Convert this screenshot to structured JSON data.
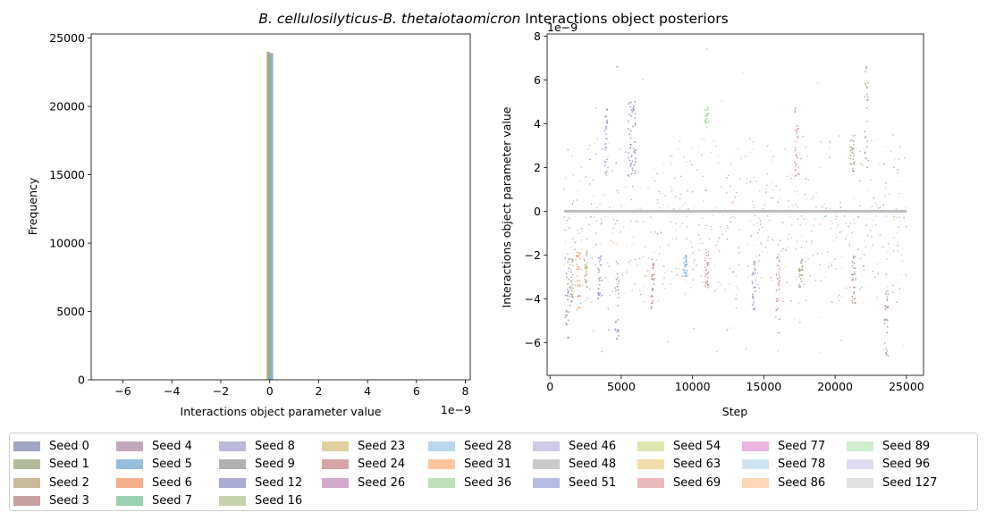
{
  "title": {
    "prefix": "B. cellulosilyticus-B. thetaiotaomicron",
    "suffix": " Interactions object posteriors"
  },
  "colors": {
    "seeds": [
      "#8a8fb5",
      "#9daa82",
      "#bca981",
      "#b78a8b",
      "#b391ad",
      "#7baed6",
      "#f19a6b",
      "#82c59b",
      "#a9a7d2",
      "#9e9e9e",
      "#9696c8",
      "#b8c79a",
      "#d9c184",
      "#cd8f8f",
      "#c994c2",
      "#a6cde8",
      "#fbb785",
      "#acd7a6",
      "#c1bde0",
      "#bdbdbd",
      "#a6abdc",
      "#d4e09e",
      "#eed495",
      "#e6a7ab",
      "#e2a4d6",
      "#c3ddec",
      "#fdcda4",
      "#c4e8c1",
      "#d7d6ea",
      "#d9d9d9"
    ]
  },
  "chart_data": [
    {
      "type": "histogram",
      "title": "",
      "xlabel": "Interactions object parameter value",
      "ylabel": "Frequency",
      "x_exponent": "1e−9",
      "xlim": [
        -7.3e-09,
        8.2e-09
      ],
      "ylim": [
        0,
        25300
      ],
      "x_ticks": [
        -6e-09,
        -4e-09,
        -2e-09,
        0,
        2e-09,
        4e-09,
        6e-09,
        8e-09
      ],
      "x_tick_labels": [
        "−6",
        "−4",
        "−2",
        "0",
        "2",
        "4",
        "6",
        "8"
      ],
      "y_ticks": [
        0,
        5000,
        10000,
        15000,
        20000,
        25000
      ],
      "y_tick_labels": [
        "0",
        "5000",
        "10000",
        "15000",
        "20000",
        "25000"
      ],
      "bars": [
        {
          "series": "Seed 2",
          "x0": -1.3e-10,
          "x1": 1.5e-11,
          "height": 24000
        },
        {
          "series": "Seed 1",
          "x0": -8e-11,
          "x1": 5e-11,
          "height": 23850
        },
        {
          "series": "Seed 5",
          "x0": 1.5e-11,
          "x1": 1.4e-10,
          "height": 23900
        }
      ]
    },
    {
      "type": "scatter",
      "title": "",
      "xlabel": "Step",
      "ylabel": "Interactions object parameter value",
      "y_exponent": "1e−9",
      "xlim": [
        -200,
        26200
      ],
      "ylim": [
        -7.5e-09,
        8.1e-09
      ],
      "x_ticks": [
        0,
        5000,
        10000,
        15000,
        20000,
        25000
      ],
      "x_tick_labels": [
        "0",
        "5000",
        "10000",
        "15000",
        "20000",
        "25000"
      ],
      "y_ticks": [
        -6e-09,
        -4e-09,
        -2e-09,
        0,
        2e-09,
        4e-09,
        6e-09,
        8e-09
      ],
      "y_tick_labels": [
        "−6",
        "−4",
        "−2",
        "0",
        "2",
        "4",
        "6",
        "8"
      ],
      "zero_line": {
        "x0": 1000,
        "x1": 25000,
        "y": 0
      },
      "step_range": [
        1000,
        25000
      ],
      "dense_columns": [
        {
          "step": 1200,
          "ymin": -6e-09,
          "ymax": -1.8e-09,
          "series": 0
        },
        {
          "step": 1500,
          "ymin": -4.5e-09,
          "ymax": -2e-09,
          "series": 1
        },
        {
          "step": 2000,
          "ymin": -4.5e-09,
          "ymax": -1.8e-09,
          "series": 6
        },
        {
          "step": 2500,
          "ymin": -3.5e-09,
          "ymax": -1.8e-09,
          "series": 2
        },
        {
          "step": 3500,
          "ymin": -4e-09,
          "ymax": -2e-09,
          "series": 10
        },
        {
          "step": 3900,
          "ymin": 1.5e-09,
          "ymax": 4.7e-09,
          "series": 10
        },
        {
          "step": 4700,
          "ymin": -5.9e-09,
          "ymax": -2e-09,
          "series": 10
        },
        {
          "step": 5600,
          "ymin": 1.5e-09,
          "ymax": 5.1e-09,
          "series": 0
        },
        {
          "step": 5900,
          "ymin": 1.7e-09,
          "ymax": 5.1e-09,
          "series": 0
        },
        {
          "step": 7200,
          "ymin": -4.5e-09,
          "ymax": -2e-09,
          "series": 3
        },
        {
          "step": 9500,
          "ymin": -3e-09,
          "ymax": -2e-09,
          "series": 5
        },
        {
          "step": 11000,
          "ymin": 3.8e-09,
          "ymax": 4.8e-09,
          "series": 17
        },
        {
          "step": 11000,
          "ymin": -3.5e-09,
          "ymax": -2e-09,
          "series": 13
        },
        {
          "step": 14300,
          "ymin": -4.5e-09,
          "ymax": -2e-09,
          "series": 0
        },
        {
          "step": 16000,
          "ymin": -5.6e-09,
          "ymax": -2e-09,
          "series": 13
        },
        {
          "step": 17300,
          "ymin": 1.5e-09,
          "ymax": 4.8e-09,
          "series": 13
        },
        {
          "step": 17600,
          "ymin": -3.5e-09,
          "ymax": -2e-09,
          "series": 1
        },
        {
          "step": 21200,
          "ymin": 1.8e-09,
          "ymax": 3.5e-09,
          "series": 1
        },
        {
          "step": 21300,
          "ymin": -4.3e-09,
          "ymax": -2e-09,
          "series": 3
        },
        {
          "step": 22200,
          "ymin": 1.5e-09,
          "ymax": 6.6e-09,
          "series": 1
        },
        {
          "step": 23600,
          "ymin": -6.6e-09,
          "ymax": -3.5e-09,
          "series": 4
        }
      ]
    }
  ],
  "legend": {
    "columns": [
      [
        "Seed 0",
        "Seed 1",
        "Seed 2",
        "Seed 3"
      ],
      [
        "Seed 4",
        "Seed 5",
        "Seed 6",
        "Seed 7"
      ],
      [
        "Seed 8",
        "Seed 9",
        "Seed 12",
        "Seed 16"
      ],
      [
        "Seed 23",
        "Seed 24",
        "Seed 26"
      ],
      [
        "Seed 28",
        "Seed 31",
        "Seed 36"
      ],
      [
        "Seed 46",
        "Seed 48",
        "Seed 51"
      ],
      [
        "Seed 54",
        "Seed 63",
        "Seed 69"
      ],
      [
        "Seed 77",
        "Seed 78",
        "Seed 86"
      ],
      [
        "Seed 89",
        "Seed 96",
        "Seed 127"
      ]
    ]
  }
}
